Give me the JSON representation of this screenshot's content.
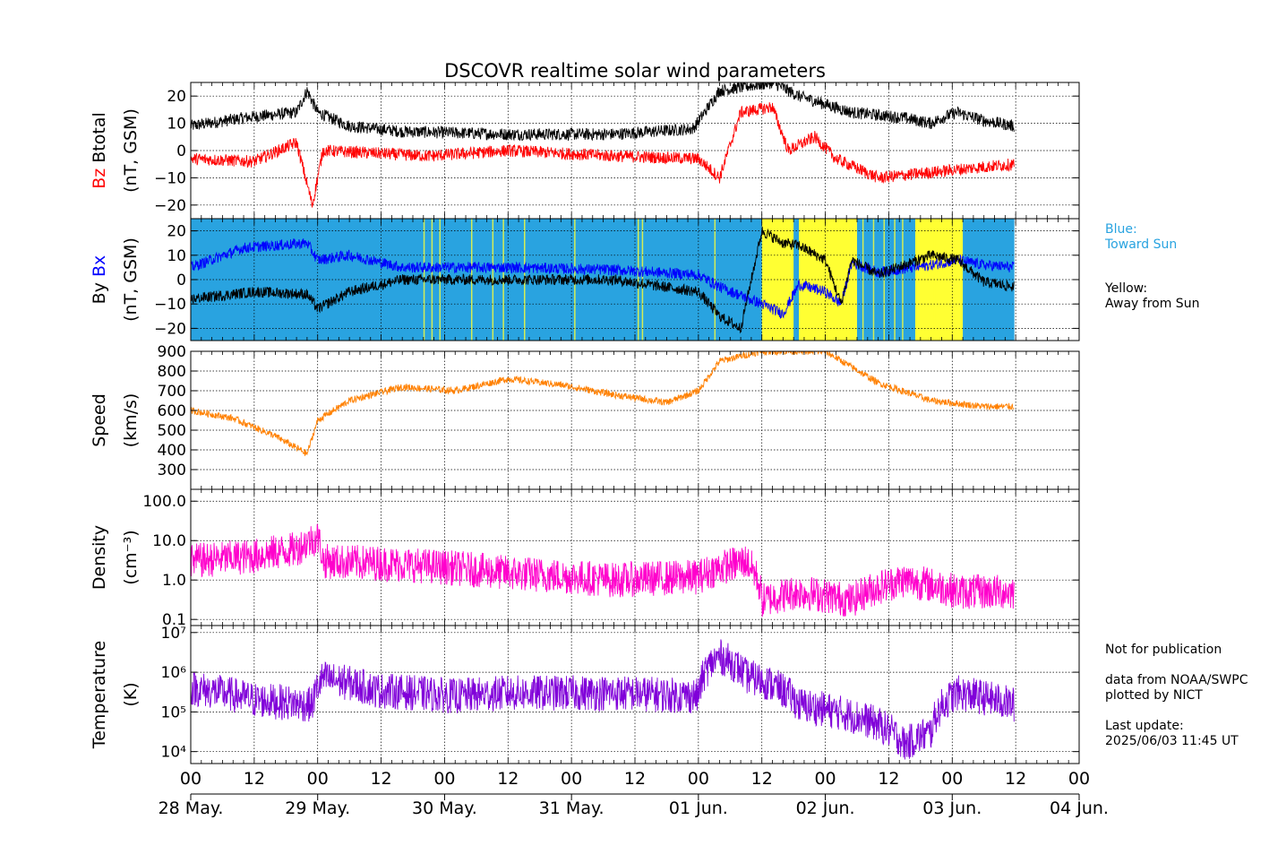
{
  "chart_data": {
    "type": "line",
    "title": "DSCOVR realtime solar wind parameters",
    "x_ticks": [
      "00",
      "12",
      "00",
      "12",
      "00",
      "12",
      "00",
      "12",
      "00",
      "12",
      "00",
      "12",
      "00",
      "12",
      "00"
    ],
    "x_dates": [
      "28 May.",
      "29 May.",
      "30 May.",
      "31 May.",
      "01 Jun.",
      "02 Jun.",
      "03 Jun.",
      "04 Jun."
    ],
    "x_range_hours": [
      0,
      168
    ],
    "data_end_hour": 155.75,
    "panels": [
      {
        "id": "magnetic-total",
        "ylabel_lines": [
          "Btotal",
          "(nT, GSM)"
        ],
        "ylabel_colored": "Bz",
        "ylim": [
          -25,
          25
        ],
        "yticks": [
          "20",
          "10",
          "0",
          "−10",
          "−20"
        ],
        "series": [
          {
            "name": "Btotal",
            "color": "#000000",
            "points": [
              [
                0,
                9
              ],
              [
                10,
                12
              ],
              [
                20,
                14
              ],
              [
                22,
                22
              ],
              [
                24,
                14
              ],
              [
                30,
                9
              ],
              [
                40,
                7
              ],
              [
                60,
                6
              ],
              [
                80,
                6
              ],
              [
                95,
                8
              ],
              [
                100,
                22
              ],
              [
                110,
                25
              ],
              [
                115,
                20
              ],
              [
                120,
                17
              ],
              [
                125,
                14
              ],
              [
                135,
                12
              ],
              [
                140,
                10
              ],
              [
                142,
                12
              ],
              [
                145,
                14
              ],
              [
                150,
                11
              ],
              [
                155.75,
                9
              ]
            ]
          },
          {
            "name": "Bz",
            "color": "#ff0000",
            "points": [
              [
                0,
                -3
              ],
              [
                12,
                -4
              ],
              [
                20,
                3
              ],
              [
                23,
                -20
              ],
              [
                25,
                0
              ],
              [
                35,
                -1
              ],
              [
                45,
                -2
              ],
              [
                60,
                0
              ],
              [
                80,
                -2
              ],
              [
                96,
                -3
              ],
              [
                100,
                -10
              ],
              [
                104,
                14
              ],
              [
                110,
                16
              ],
              [
                113,
                0
              ],
              [
                118,
                5
              ],
              [
                122,
                -3
              ],
              [
                130,
                -10
              ],
              [
                140,
                -8
              ],
              [
                150,
                -6
              ],
              [
                155.75,
                -5
              ]
            ]
          }
        ]
      },
      {
        "id": "magnetic-components",
        "ylabel_lines": [
          "By",
          "(nT, GSM)"
        ],
        "ylabel_colored": "Bx",
        "ylim": [
          -25,
          25
        ],
        "yticks": [
          "20",
          "10",
          "0",
          "−10",
          "−20"
        ],
        "sector_colors": {
          "toward": "#29a3e0",
          "away": "#ffff33"
        },
        "away_intervals": [
          [
            108,
            114
          ],
          [
            115,
            126
          ],
          [
            137,
            146
          ]
        ],
        "series": [
          {
            "name": "Bx",
            "color": "#0000ff",
            "points": [
              [
                0,
                5
              ],
              [
                10,
                13
              ],
              [
                22,
                15
              ],
              [
                24,
                8
              ],
              [
                30,
                10
              ],
              [
                40,
                5
              ],
              [
                60,
                5
              ],
              [
                80,
                4
              ],
              [
                96,
                2
              ],
              [
                100,
                -3
              ],
              [
                108,
                -10
              ],
              [
                112,
                -14
              ],
              [
                115,
                -2
              ],
              [
                120,
                -5
              ],
              [
                123,
                -10
              ],
              [
                125,
                7
              ],
              [
                130,
                3
              ],
              [
                140,
                6
              ],
              [
                145,
                8
              ],
              [
                150,
                6
              ],
              [
                155.75,
                5
              ]
            ]
          },
          {
            "name": "By",
            "color": "#000000",
            "points": [
              [
                0,
                -8
              ],
              [
                12,
                -5
              ],
              [
                22,
                -6
              ],
              [
                24,
                -12
              ],
              [
                30,
                -5
              ],
              [
                40,
                0
              ],
              [
                60,
                0
              ],
              [
                80,
                0
              ],
              [
                96,
                -5
              ],
              [
                100,
                -15
              ],
              [
                104,
                -20
              ],
              [
                108,
                20
              ],
              [
                112,
                15
              ],
              [
                115,
                14
              ],
              [
                120,
                8
              ],
              [
                123,
                -10
              ],
              [
                125,
                8
              ],
              [
                130,
                2
              ],
              [
                140,
                10
              ],
              [
                145,
                8
              ],
              [
                150,
                -1
              ],
              [
                155.75,
                -3
              ]
            ]
          }
        ]
      },
      {
        "id": "speed",
        "ylabel_lines": [
          "Speed",
          "(km/s)"
        ],
        "ylim": [
          200,
          900
        ],
        "yticks": [
          "900",
          "800",
          "700",
          "600",
          "500",
          "400",
          "300"
        ],
        "series": [
          {
            "name": "Speed",
            "color": "#ff8000",
            "points": [
              [
                0,
                600
              ],
              [
                8,
                560
              ],
              [
                16,
                470
              ],
              [
                22,
                380
              ],
              [
                24,
                550
              ],
              [
                30,
                650
              ],
              [
                40,
                720
              ],
              [
                50,
                700
              ],
              [
                60,
                760
              ],
              [
                70,
                730
              ],
              [
                80,
                680
              ],
              [
                90,
                640
              ],
              [
                96,
                700
              ],
              [
                100,
                850
              ],
              [
                108,
                900
              ],
              [
                120,
                900
              ],
              [
                125,
                820
              ],
              [
                130,
                740
              ],
              [
                140,
                650
              ],
              [
                150,
                620
              ],
              [
                155.75,
                620
              ]
            ]
          }
        ]
      },
      {
        "id": "density",
        "ylabel_lines": [
          "Density",
          "(cm⁻³)"
        ],
        "ylim": [
          0.07,
          200
        ],
        "log": true,
        "yticks": [
          "100.0",
          "10.0",
          "1.0",
          "0.1"
        ],
        "series": [
          {
            "name": "Density",
            "color": "#ff00cc",
            "points": [
              [
                0,
                3
              ],
              [
                12,
                4
              ],
              [
                20,
                6
              ],
              [
                24,
                12
              ],
              [
                25,
                3
              ],
              [
                40,
                2.5
              ],
              [
                60,
                1.5
              ],
              [
                80,
                1
              ],
              [
                96,
                1.2
              ],
              [
                105,
                3
              ],
              [
                108,
                0.3
              ],
              [
                115,
                0.5
              ],
              [
                125,
                0.3
              ],
              [
                135,
                1
              ],
              [
                145,
                0.5
              ],
              [
                155.75,
                0.5
              ]
            ]
          }
        ]
      },
      {
        "id": "temperature",
        "ylabel_lines": [
          "Temperature",
          "(K)"
        ],
        "ylim": [
          5000,
          15000000
        ],
        "log": true,
        "yticks": [
          "10⁷",
          "10⁶",
          "10⁵",
          "10⁴"
        ],
        "series": [
          {
            "name": "Temperature",
            "color": "#8000d9",
            "points": [
              [
                0,
                400000
              ],
              [
                12,
                200000
              ],
              [
                23,
                150000
              ],
              [
                25,
                700000
              ],
              [
                35,
                350000
              ],
              [
                50,
                250000
              ],
              [
                60,
                300000
              ],
              [
                80,
                300000
              ],
              [
                96,
                250000
              ],
              [
                100,
                2500000
              ],
              [
                105,
                800000
              ],
              [
                115,
                150000
              ],
              [
                125,
                80000
              ],
              [
                135,
                15000
              ],
              [
                140,
                30000
              ],
              [
                145,
                300000
              ],
              [
                155.75,
                150000
              ]
            ]
          }
        ]
      }
    ]
  },
  "side_notes": {
    "blue_label": "Blue:\nToward Sun",
    "yellow_label": "Yellow:\nAway from Sun",
    "footer": "Not for publication\n\ndata from NOAA/SWPC\nplotted by NICT\n\nLast update:\n2025/06/03 11:45 UT"
  }
}
